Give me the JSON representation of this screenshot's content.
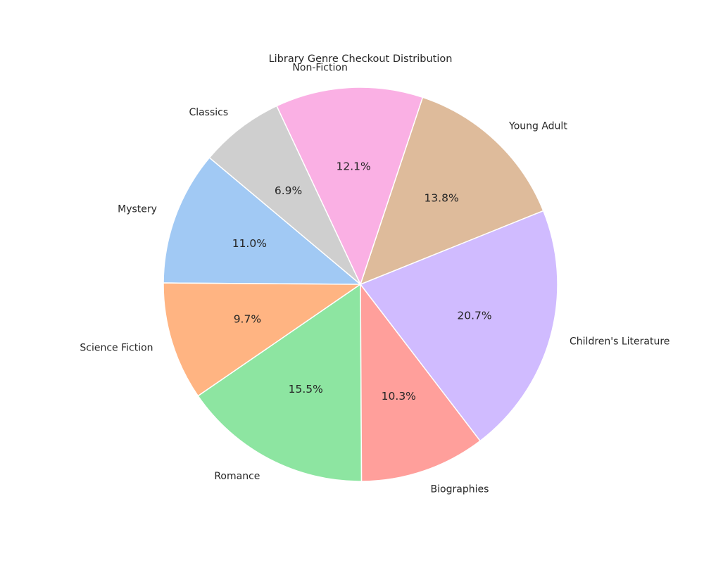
{
  "chart_data": {
    "type": "pie",
    "title": "Library Genre Checkout Distribution",
    "slices": [
      {
        "label": "Mystery",
        "value": 11.0,
        "pct_label": "11.0%",
        "color": "#a1c9f4"
      },
      {
        "label": "Science Fiction",
        "value": 9.7,
        "pct_label": "9.7%",
        "color": "#ffb482"
      },
      {
        "label": "Romance",
        "value": 15.5,
        "pct_label": "15.5%",
        "color": "#8de5a1"
      },
      {
        "label": "Biographies",
        "value": 10.3,
        "pct_label": "10.3%",
        "color": "#ff9f9b"
      },
      {
        "label": "Children's Literature",
        "value": 20.7,
        "pct_label": "20.7%",
        "color": "#d0bbff"
      },
      {
        "label": "Young Adult",
        "value": 13.8,
        "pct_label": "13.8%",
        "color": "#debb9b"
      },
      {
        "label": "Non-Fiction",
        "value": 12.1,
        "pct_label": "12.1%",
        "color": "#fab0e4"
      },
      {
        "label": "Classics",
        "value": 6.9,
        "pct_label": "6.9%",
        "color": "#cfcfcf"
      }
    ],
    "start_angle_deg": 140,
    "direction": "counterclockwise"
  }
}
